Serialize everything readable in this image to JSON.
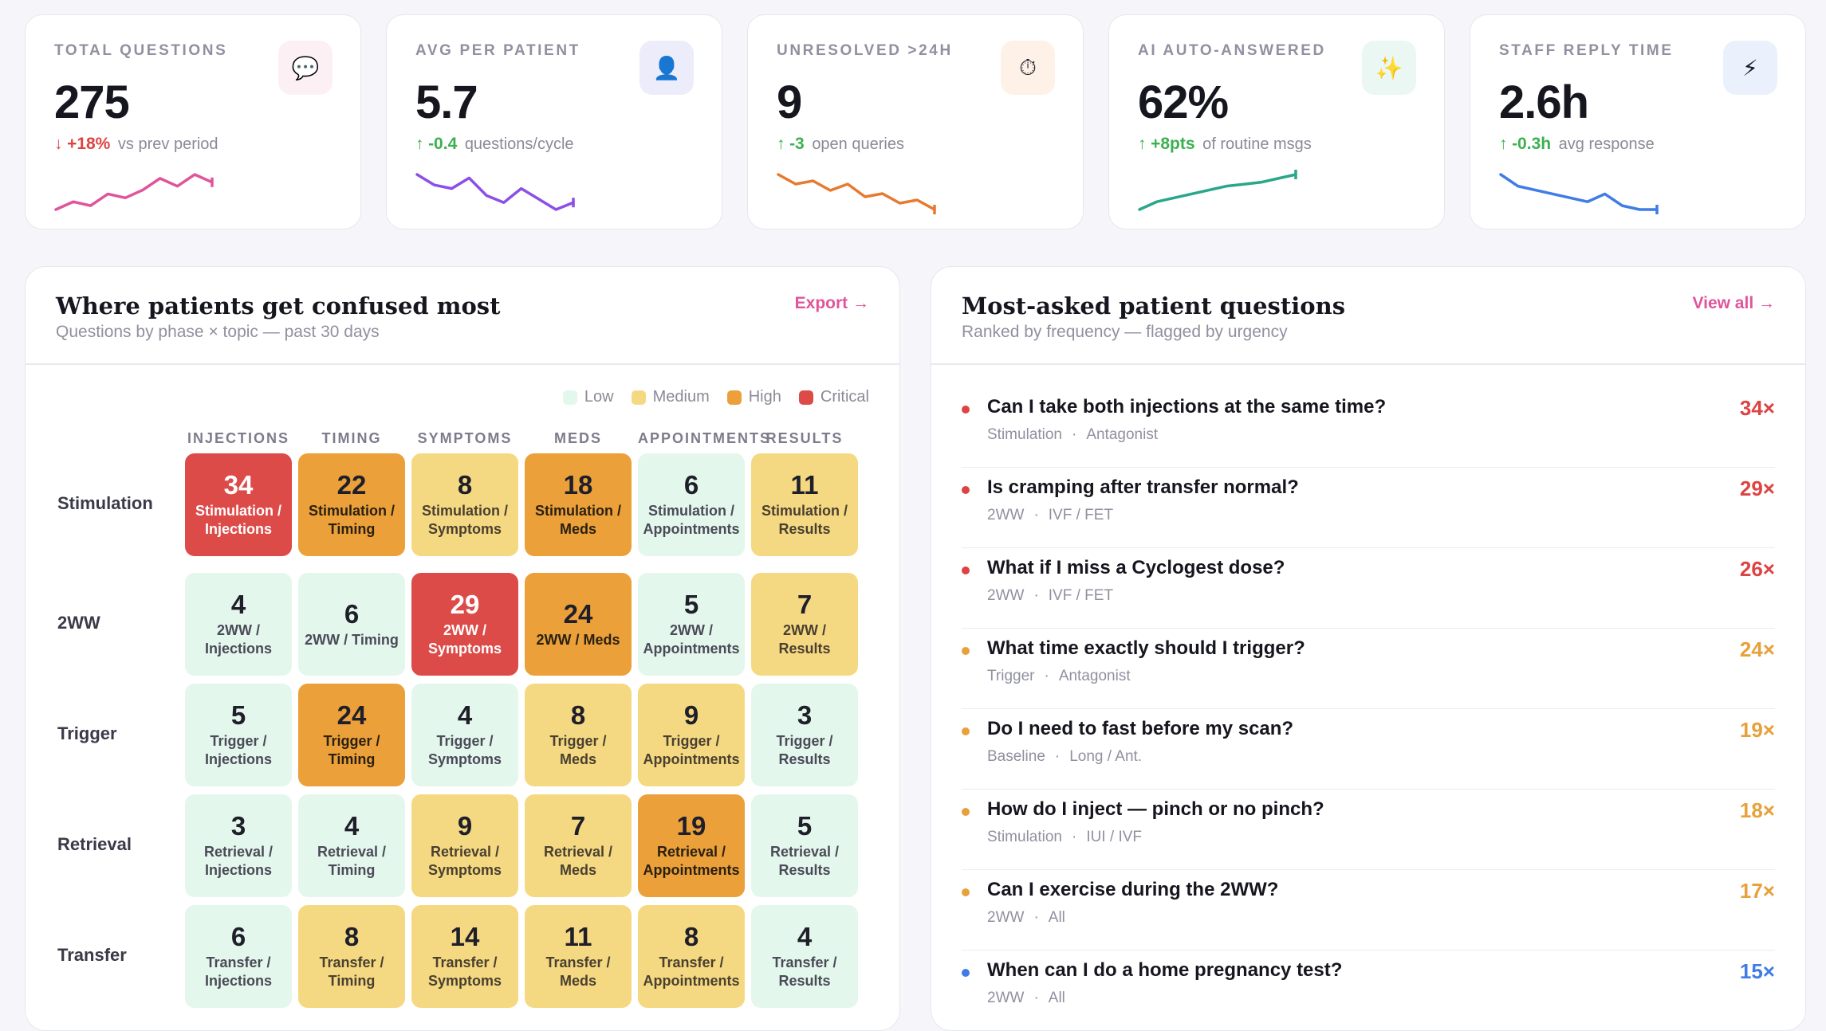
{
  "kpis": [
    {
      "label": "TOTAL QUESTIONS",
      "value": "275",
      "arrow": "↓",
      "delta": "+18%",
      "delta_color": "red",
      "suffix": "vs prev period",
      "icon": "chat-bubble-icon",
      "icon_glyph": "💬",
      "icon_bg": "#fdf0f5",
      "spark_color": "#e0559a",
      "spark": [
        3,
        5,
        4,
        7,
        6,
        8,
        11,
        9,
        12,
        10
      ]
    },
    {
      "label": "AVG PER PATIENT",
      "value": "5.7",
      "arrow": "↑",
      "delta": "-0.4",
      "delta_color": "green",
      "suffix": "questions/cycle",
      "icon": "user-icon",
      "icon_glyph": "👤",
      "icon_bg": "#ececfb",
      "spark_color": "#8c4fe6",
      "spark": [
        12,
        9,
        8,
        11,
        6,
        4,
        8,
        5,
        2,
        4
      ]
    },
    {
      "label": "UNRESOLVED >24H",
      "value": "9",
      "arrow": "↑",
      "delta": "-3",
      "delta_color": "green",
      "suffix": "open queries",
      "icon": "stopwatch-icon",
      "icon_glyph": "⏱",
      "icon_bg": "#fdf1e8",
      "spark_color": "#e67a2e",
      "spark": [
        12,
        9,
        10,
        7,
        9,
        5,
        6,
        3,
        4,
        1
      ]
    },
    {
      "label": "AI AUTO-ANSWERED",
      "value": "62%",
      "arrow": "↑",
      "delta": "+8pts",
      "delta_color": "green",
      "suffix": "of routine msgs",
      "icon": "sparkles-icon",
      "icon_glyph": "✨",
      "icon_bg": "#eaf7f3",
      "spark_color": "#2aa68a",
      "spark": [
        1,
        3,
        4,
        5,
        6,
        7,
        7.5,
        8,
        9,
        10
      ]
    },
    {
      "label": "STAFF REPLY TIME",
      "value": "2.6h",
      "arrow": "↑",
      "delta": "-0.3h",
      "delta_color": "green",
      "suffix": "avg response",
      "icon": "lightning-icon",
      "icon_glyph": "⚡",
      "icon_bg": "#ebf1fc",
      "spark_color": "#3f7ce6",
      "spark": [
        12,
        9,
        8,
        7,
        6,
        5,
        7,
        4,
        3,
        3
      ]
    }
  ],
  "heatmap": {
    "title": "Where patients get confused most",
    "subtitle": "Questions by phase × topic — past 30 days",
    "link": "Export →",
    "legend": [
      {
        "label": "Low",
        "color": "#e4f7ec"
      },
      {
        "label": "Medium",
        "color": "#f5d982"
      },
      {
        "label": "High",
        "color": "#eba03a"
      },
      {
        "label": "Critical",
        "color": "#dd4b49"
      }
    ],
    "columns": [
      "INJECTIONS",
      "TIMING",
      "SYMPTOMS",
      "MEDS",
      "APPOINTMENTS",
      "RESULTS"
    ],
    "rows": [
      {
        "label": "Stimulation",
        "cells": [
          {
            "n": "34",
            "t": "Stimulation / Injections",
            "lvl": "critical"
          },
          {
            "n": "22",
            "t": "Stimulation / Timing",
            "lvl": "high"
          },
          {
            "n": "8",
            "t": "Stimulation / Symptoms",
            "lvl": "medium"
          },
          {
            "n": "18",
            "t": "Stimulation / Meds",
            "lvl": "high"
          },
          {
            "n": "6",
            "t": "Stimulation / Appointments",
            "lvl": "low"
          },
          {
            "n": "11",
            "t": "Stimulation / Results",
            "lvl": "medium"
          }
        ]
      },
      {
        "label": "2WW",
        "cells": [
          {
            "n": "4",
            "t": "2WW / Injections",
            "lvl": "low"
          },
          {
            "n": "6",
            "t": "2WW / Timing",
            "lvl": "low"
          },
          {
            "n": "29",
            "t": "2WW / Symptoms",
            "lvl": "critical"
          },
          {
            "n": "24",
            "t": "2WW / Meds",
            "lvl": "high"
          },
          {
            "n": "5",
            "t": "2WW / Appointments",
            "lvl": "low"
          },
          {
            "n": "7",
            "t": "2WW / Results",
            "lvl": "medium"
          }
        ]
      },
      {
        "label": "Trigger",
        "cells": [
          {
            "n": "5",
            "t": "Trigger / Injections",
            "lvl": "low"
          },
          {
            "n": "24",
            "t": "Trigger / Timing",
            "lvl": "high"
          },
          {
            "n": "4",
            "t": "Trigger / Symptoms",
            "lvl": "low"
          },
          {
            "n": "8",
            "t": "Trigger / Meds",
            "lvl": "medium"
          },
          {
            "n": "9",
            "t": "Trigger / Appointments",
            "lvl": "medium"
          },
          {
            "n": "3",
            "t": "Trigger / Results",
            "lvl": "low"
          }
        ]
      },
      {
        "label": "Retrieval",
        "cells": [
          {
            "n": "3",
            "t": "Retrieval / Injections",
            "lvl": "low"
          },
          {
            "n": "4",
            "t": "Retrieval / Timing",
            "lvl": "low"
          },
          {
            "n": "9",
            "t": "Retrieval / Symptoms",
            "lvl": "medium"
          },
          {
            "n": "7",
            "t": "Retrieval / Meds",
            "lvl": "medium"
          },
          {
            "n": "19",
            "t": "Retrieval / Appointments",
            "lvl": "high"
          },
          {
            "n": "5",
            "t": "Retrieval / Results",
            "lvl": "low"
          }
        ]
      },
      {
        "label": "Transfer",
        "cells": [
          {
            "n": "6",
            "t": "Transfer / Injections",
            "lvl": "low"
          },
          {
            "n": "8",
            "t": "Transfer / Timing",
            "lvl": "medium"
          },
          {
            "n": "14",
            "t": "Transfer / Symptoms",
            "lvl": "medium"
          },
          {
            "n": "11",
            "t": "Transfer / Meds",
            "lvl": "medium"
          },
          {
            "n": "8",
            "t": "Transfer / Appointments",
            "lvl": "medium"
          },
          {
            "n": "4",
            "t": "Transfer / Results",
            "lvl": "low"
          }
        ]
      }
    ]
  },
  "questions": {
    "title": "Most-asked patient questions",
    "subtitle": "Ranked by frequency — flagged by urgency",
    "link": "View all →",
    "items": [
      {
        "q": "Can I take both injections at the same time?",
        "phase": "Stimulation",
        "protocol": "Antagonist",
        "count": "34×",
        "color": "#de4343"
      },
      {
        "q": "Is cramping after transfer normal?",
        "phase": "2WW",
        "protocol": "IVF / FET",
        "count": "29×",
        "color": "#de4343"
      },
      {
        "q": "What if I miss a Cyclogest dose?",
        "phase": "2WW",
        "protocol": "IVF / FET",
        "count": "26×",
        "color": "#de4343"
      },
      {
        "q": "What time exactly should I trigger?",
        "phase": "Trigger",
        "protocol": "Antagonist",
        "count": "24×",
        "color": "#e8a13a"
      },
      {
        "q": "Do I need to fast before my scan?",
        "phase": "Baseline",
        "protocol": "Long / Ant.",
        "count": "19×",
        "color": "#e8a13a"
      },
      {
        "q": "How do I inject — pinch or no pinch?",
        "phase": "Stimulation",
        "protocol": "IUI / IVF",
        "count": "18×",
        "color": "#e8a13a"
      },
      {
        "q": "Can I exercise during the 2WW?",
        "phase": "2WW",
        "protocol": "All",
        "count": "17×",
        "color": "#e8a13a"
      },
      {
        "q": "When can I do a home pregnancy test?",
        "phase": "2WW",
        "protocol": "All",
        "count": "15×",
        "color": "#3f7ce6"
      }
    ]
  }
}
